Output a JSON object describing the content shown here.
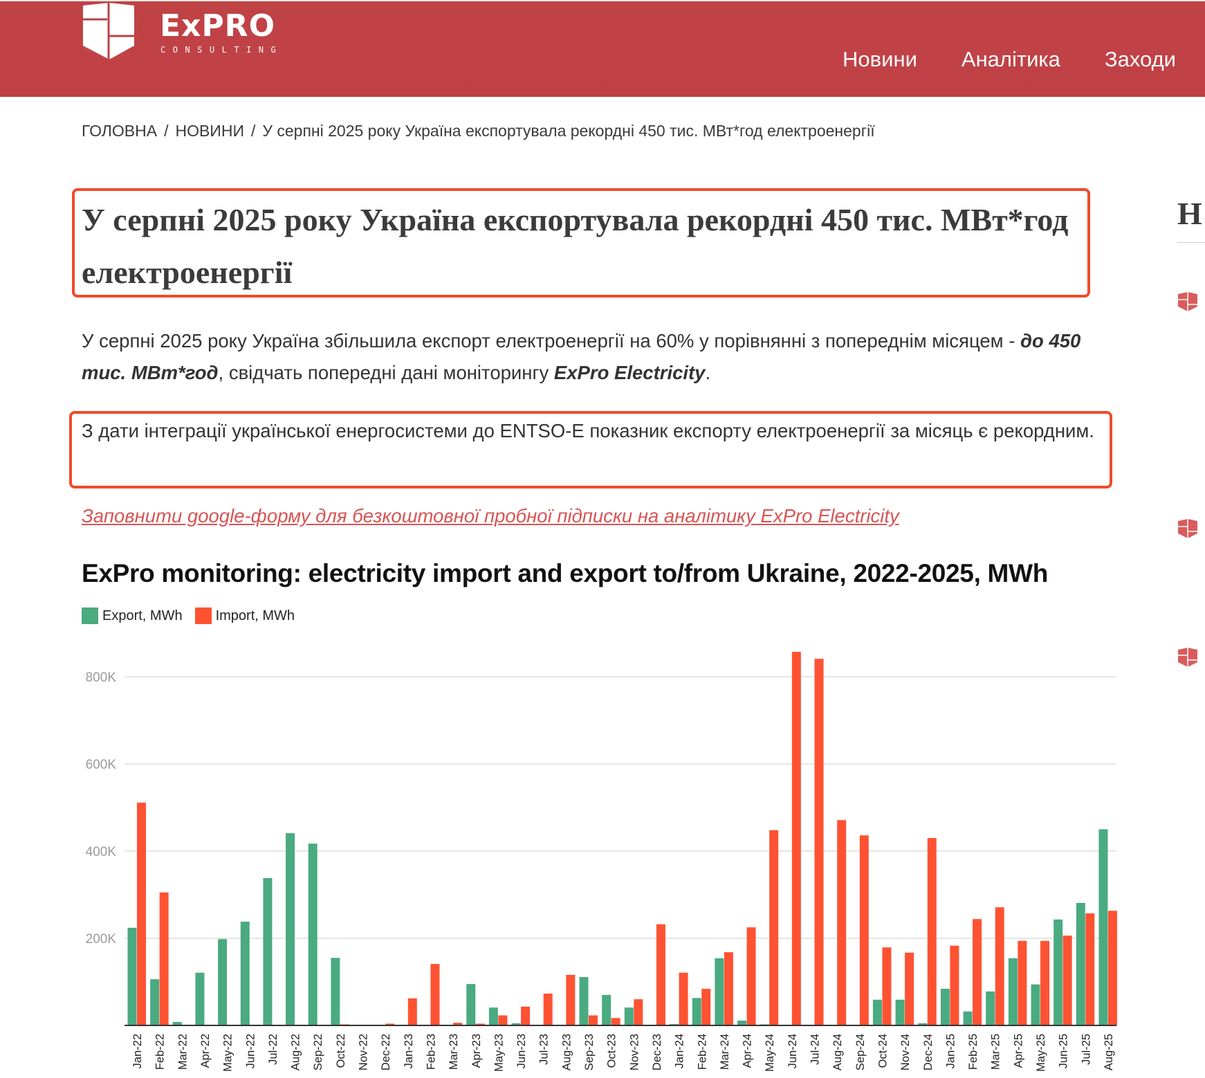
{
  "header": {
    "logo_word": "ExPRO",
    "logo_sub": "CONSULTING",
    "nav": [
      "Новини",
      "Аналітика",
      "Заходи"
    ]
  },
  "breadcrumb": {
    "items": [
      "ГОЛОВНА",
      "НОВИНИ"
    ],
    "current": "У серпні 2025 року Україна експортувала рекордні 450 тис. МВт*год електроенергії",
    "separator": "/"
  },
  "article": {
    "title": "У серпні 2025 року Україна експортувала рекордні 450 тис. МВт*год електроенергії",
    "lead_part1": "У серпні 2025 року Україна збільшила експорт електроенергії на 60% у порівнянні з попереднім місяцем - ",
    "lead_bold": "до 450 тис. МВт*год",
    "lead_part2": ", свідчать попередні дані моніторингу ",
    "lead_bold2": "ExPro Electricity",
    "lead_part3": ".",
    "highlight": "З дати інтеграції української енергосистеми до ENTSO-E показник експорту електроенергії за місяць є рекордним.",
    "promo_link": "Заповнити google-форму для безкоштовної пробної підписки на аналітику ExPro Electricity"
  },
  "sidebar": {
    "title_fragment": "Н"
  },
  "colors": {
    "brand": "#bf4245",
    "highlight_border": "#f04b2a",
    "export": "#4aaa80",
    "import": "#ff5233",
    "link": "#d85454"
  },
  "chart_data": {
    "type": "bar",
    "title": "ExPro monitoring: electricity import and export to/from Ukraine, 2022-2025, MWh",
    "xlabel": "",
    "ylabel": "",
    "ylim": [
      0,
      870000
    ],
    "yticks": [
      200000,
      400000,
      600000,
      800000
    ],
    "ytick_labels": [
      "200K",
      "400K",
      "600K",
      "800K"
    ],
    "grid": true,
    "legend_position": "top-left",
    "categories": [
      "Jan-22",
      "Feb-22",
      "Mar-22",
      "Apr-22",
      "May-22",
      "Jun-22",
      "Jul-22",
      "Aug-22",
      "Sep-22",
      "Oct-22",
      "Nov-22",
      "Dec-22",
      "Jan-23",
      "Feb-23",
      "Mar-23",
      "Apr-23",
      "May-23",
      "Jun-23",
      "Jul-23",
      "Aug-23",
      "Sep-23",
      "Oct-23",
      "Nov-23",
      "Dec-23",
      "Jan-24",
      "Feb-24",
      "Mar-24",
      "Apr-24",
      "May-24",
      "Jun-24",
      "Jul-24",
      "Aug-24",
      "Sep-24",
      "Oct-24",
      "Nov-24",
      "Dec-24",
      "Jan-25",
      "Feb-25",
      "Mar-25",
      "Apr-25",
      "May-25",
      "Jun-25",
      "Jul-25",
      "Aug-25"
    ],
    "series": [
      {
        "name": "Export, MWh",
        "color": "#4aaa80",
        "values": [
          224000,
          106000,
          8000,
          121000,
          198000,
          238000,
          338000,
          441000,
          417000,
          155000,
          0,
          0,
          0,
          0,
          0,
          95000,
          41000,
          5000,
          0,
          0,
          111000,
          70000,
          41000,
          0,
          3000,
          63000,
          154000,
          11000,
          2000,
          0,
          0,
          0,
          0,
          59000,
          59000,
          5000,
          84000,
          32000,
          78000,
          154000,
          94000,
          243000,
          281000,
          450000
        ]
      },
      {
        "name": "Import, MWh",
        "color": "#ff5233",
        "values": [
          511000,
          305000,
          0,
          0,
          0,
          0,
          0,
          0,
          0,
          2000,
          0,
          4000,
          62000,
          141000,
          6000,
          4000,
          23000,
          43000,
          73000,
          116000,
          23000,
          17000,
          60000,
          232000,
          121000,
          84000,
          168000,
          225000,
          448000,
          857000,
          841000,
          471000,
          436000,
          179000,
          167000,
          430000,
          183000,
          244000,
          271000,
          194000,
          194000,
          206000,
          257000,
          263000
        ]
      }
    ]
  }
}
